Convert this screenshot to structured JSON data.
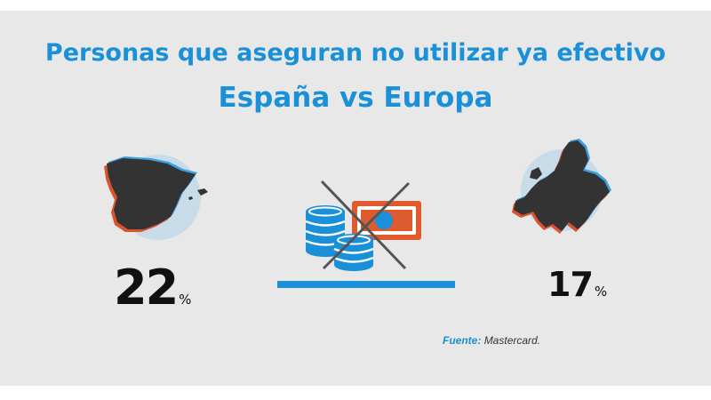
{
  "title": {
    "line1": "Personas que aseguran no utilizar ya efectivo",
    "line2": "España vs Europa"
  },
  "stats": {
    "spain": {
      "value": "22",
      "unit": "%"
    },
    "europe": {
      "value": "17",
      "unit": "%"
    }
  },
  "source": {
    "label": "Fuente:",
    "name": "Mastercard."
  },
  "icons": {
    "spain_map": "spain-map-icon",
    "europe_map": "europe-map-icon",
    "no_cash": "no-cash-icon"
  },
  "colors": {
    "accent": "#1a90d8",
    "card_bg": "#e8e8e8",
    "map_fill": "#333333",
    "map_shadow_red": "#d9542c",
    "bill": "#e05a30"
  }
}
